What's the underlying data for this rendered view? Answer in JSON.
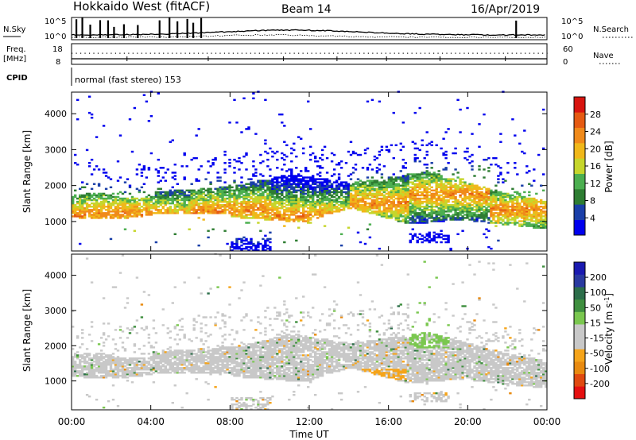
{
  "header": {
    "radar": "Hokkaido West (fitACF)",
    "beam": "Beam 14",
    "date": "16/Apr/2019"
  },
  "strip": {
    "nsky_label": "N.Sky",
    "nsky_top": "10^5",
    "nsky_bottom": "10^0",
    "nsearch_label": "N.Search",
    "nsearch_top": "10^5",
    "nsearch_bottom": "10^0",
    "freq_label": "Freq.",
    "freq_unit": "[MHz]",
    "freq_top": "18",
    "freq_bottom": "8",
    "nave_label": "Nave",
    "nave_top": "60",
    "nave_bottom": "0",
    "cpid_label": "CPID",
    "cpid_value": "normal (fast stereo) 153"
  },
  "colors": {
    "power_scale": [
      "#0000ee",
      "#1a3fa8",
      "#2e7d32",
      "#4caf50",
      "#c6d62c",
      "#f0b81a",
      "#f08a1a",
      "#e55a12",
      "#d8140f"
    ],
    "velocity_scale": [
      "#e51010",
      "#e04a10",
      "#e88a10",
      "#f5a41a",
      "#c8c8c8",
      "#c8c8c8",
      "#7ac74f",
      "#3f8f3f",
      "#2c6e4a",
      "#2a3aa0",
      "#1a1ab0"
    ]
  },
  "chart_data": [
    {
      "type": "heatmap",
      "name": "power",
      "ylabel": "Slant Range [km]",
      "xlabel": "",
      "x_ticks": [
        "00:00",
        "04:00",
        "08:00",
        "12:00",
        "16:00",
        "20:00",
        "00:00"
      ],
      "y_ticks": [
        1000,
        2000,
        3000,
        4000
      ],
      "ylim": [
        180,
        4600
      ],
      "xlim_hours": [
        0,
        24
      ],
      "colorbar_label": "Power [dB]",
      "colorbar_ticks": [
        "4",
        "8",
        "12",
        "16",
        "20",
        "24",
        "28"
      ],
      "colorbar_range": [
        0,
        30
      ],
      "grid": false
    },
    {
      "type": "heatmap",
      "name": "velocity",
      "ylabel": "Slant Range [km]",
      "xlabel": "Time UT",
      "x_ticks": [
        "00:00",
        "04:00",
        "08:00",
        "12:00",
        "16:00",
        "20:00",
        "00:00"
      ],
      "y_ticks": [
        1000,
        2000,
        3000,
        4000
      ],
      "ylim": [
        180,
        4600
      ],
      "xlim_hours": [
        0,
        24
      ],
      "colorbar_label": "Velocity [m s^-1]",
      "colorbar_ticks": [
        "200",
        "100",
        "50",
        "15",
        "-15",
        "-50",
        "-100",
        "-200"
      ],
      "colorbar_range": [
        -250,
        250
      ],
      "grid": false
    }
  ]
}
